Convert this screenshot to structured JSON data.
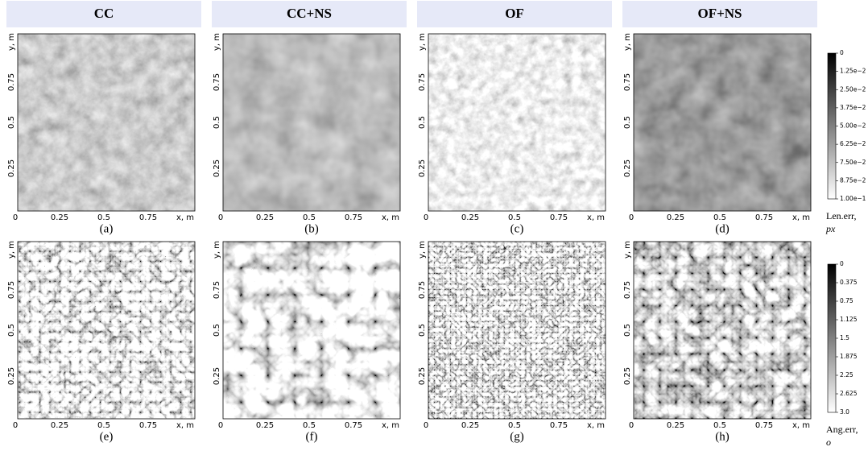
{
  "columns": [
    "CC",
    "CC+NS",
    "OF",
    "OF+NS"
  ],
  "panel_labels": [
    "(a)",
    "(b)",
    "(c)",
    "(d)",
    "(e)",
    "(f)",
    "(g)",
    "(h)"
  ],
  "x_ticks": [
    "0",
    "0.25",
    "0.5",
    "0.75",
    "x, m"
  ],
  "y_ticks": [
    "y, m",
    "0.75",
    "0.5",
    "0.25"
  ],
  "colorbars": [
    {
      "labels": [
        "0",
        "1.25e−2",
        "2.50e−2",
        "3.75e−2",
        "5.00e−2",
        "6.25e−2",
        "7.50e−2",
        "8.75e−2",
        "1.00e−1"
      ],
      "unit": [
        "Len.err,",
        "px"
      ]
    },
    {
      "labels": [
        "0",
        "0.375",
        "0.75",
        "1.125",
        "1.5",
        "1.875",
        "2.25",
        "2.625",
        "3.0"
      ],
      "unit": [
        "Ang.err,",
        "o"
      ]
    }
  ]
}
